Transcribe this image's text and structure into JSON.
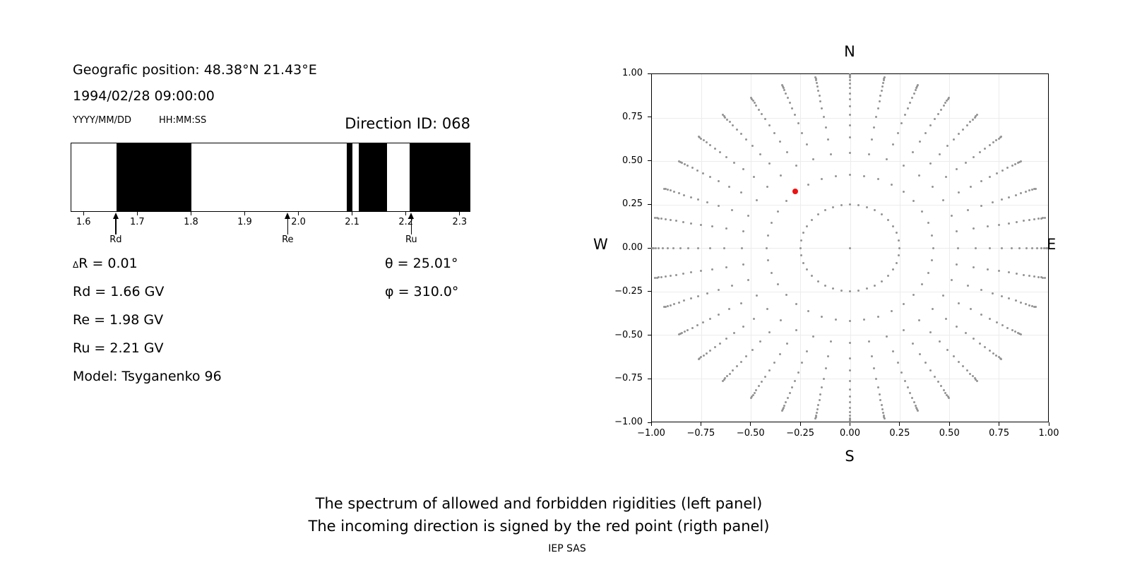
{
  "header": {
    "geo_position": "Geografic position: 48.38°N 21.43°E",
    "datetime": "1994/02/28 09:00:00",
    "date_format_label": "YYYY/MM/DD",
    "time_format_label": "HH:MM:SS",
    "direction_id_label": "Direction ID: 068"
  },
  "info_panel": {
    "delta_symbol": "Δ",
    "delta_rest": "R = 0.01",
    "rd": "Rd = 1.66 GV",
    "re": "Re = 1.98 GV",
    "ru": "Ru = 2.21 GV",
    "model": "Model: Tsyganenko 96",
    "theta": "θ = 25.01°",
    "phi": "φ = 310.0°"
  },
  "caption": {
    "line1": "The spectrum of allowed and forbidden rigidities (left panel)",
    "line2": "The incoming direction is signed by the red point (rigth panel)",
    "credit": "IEP SAS"
  },
  "chart_data": [
    {
      "id": "rigidity-spectrum",
      "type": "band",
      "description": "Spectrum of allowed (white) and forbidden (black) rigidities in GV",
      "xlim": [
        1.576,
        2.32
      ],
      "xtick_values": [
        1.6,
        1.7,
        1.8,
        1.9,
        2.0,
        2.1,
        2.2,
        2.3
      ],
      "xtick_labels": [
        "1.6",
        "1.7",
        "1.8",
        "1.9",
        "2.0",
        "2.1",
        "2.2",
        "2.3"
      ],
      "forbidden_bands": [
        [
          1.66,
          1.8
        ],
        [
          2.091,
          2.101
        ],
        [
          2.113,
          2.166
        ],
        [
          2.2075,
          2.32
        ]
      ],
      "band_color": "#000000",
      "allowed_color": "#ffffff",
      "markers": [
        {
          "label": "Rd",
          "value": 1.66
        },
        {
          "label": "Re",
          "value": 1.98
        },
        {
          "label": "Ru",
          "value": 2.21
        }
      ]
    },
    {
      "id": "direction-map",
      "type": "scatter",
      "description": "Incoming direction map; gray dots mark computed directions on 36 azimuthal spokes, red point is the incoming direction",
      "compass": {
        "top": "N",
        "bottom": "S",
        "left": "W",
        "right": "E"
      },
      "xlim": [
        -1,
        1
      ],
      "ylim": [
        -1,
        1
      ],
      "xtick_values": [
        -1,
        -0.75,
        -0.5,
        -0.25,
        0,
        0.25,
        0.5,
        0.75,
        1
      ],
      "xtick_labels": [
        "−1.00",
        "−0.75",
        "−0.50",
        "−0.25",
        "0.00",
        "0.25",
        "0.50",
        "0.75",
        "1.00"
      ],
      "ytick_values": [
        1,
        0.75,
        0.5,
        0.25,
        0,
        -0.25,
        -0.5,
        -0.75,
        -1
      ],
      "ytick_labels": [
        "1.00",
        "0.75",
        "0.50",
        "0.25",
        "0.00",
        "−0.25",
        "−0.50",
        "−0.75",
        "−1.00"
      ],
      "grid": true,
      "grid_color": "#ececec",
      "dot_color": "#949494",
      "spokes": {
        "azimuth_start_deg": 0,
        "azimuth_step_deg": 10,
        "spoke_count": 36,
        "radii": [
          0.25,
          0.42,
          0.545,
          0.635,
          0.705,
          0.765,
          0.815,
          0.855,
          0.89,
          0.92,
          0.945,
          0.965,
          0.98,
          0.99,
          0.998
        ]
      },
      "center_dot": {
        "x": 0,
        "y": 0
      },
      "red_point": {
        "x": -0.275,
        "y": 0.325,
        "color": "#ed1111"
      }
    }
  ]
}
